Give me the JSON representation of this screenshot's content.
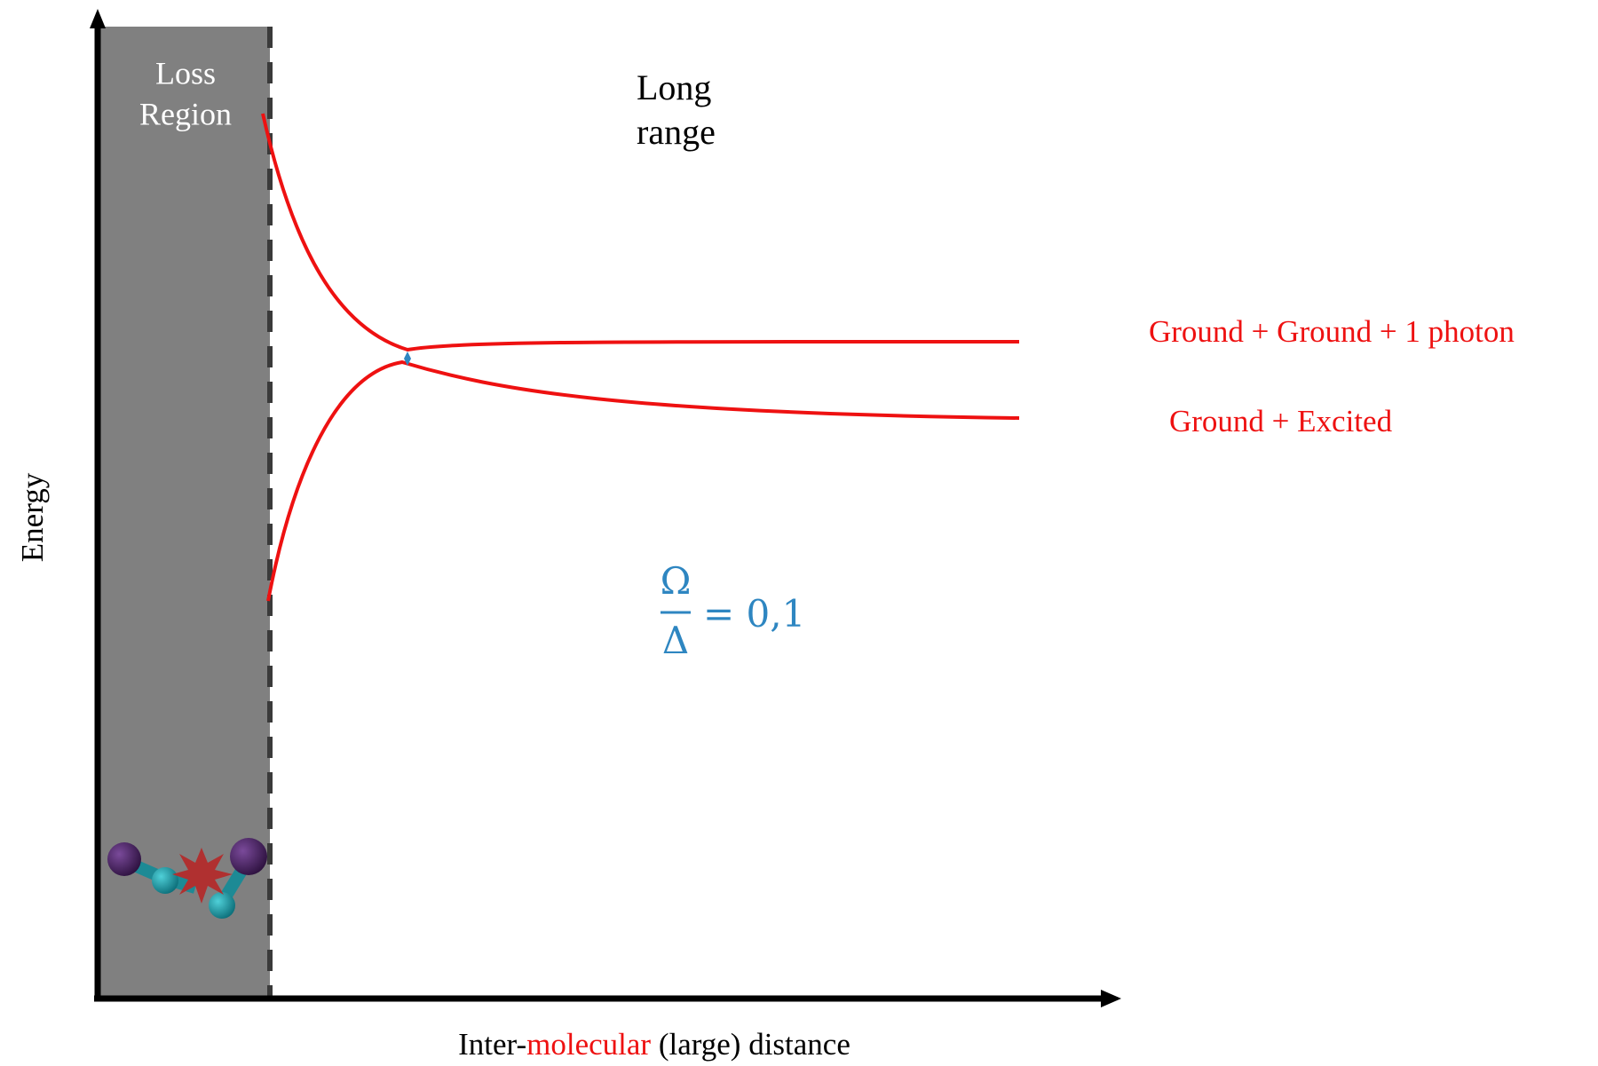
{
  "labels": {
    "loss_region": [
      "Loss",
      "Region"
    ],
    "long_range": [
      "Long",
      "range"
    ],
    "y_axis_label": "Energy",
    "x_axis_label": [
      "Inter-",
      "molecular",
      " (large) distance"
    ],
    "curve_labels": [
      "Ground + Ground + 1 photon",
      "Ground + Excited"
    ],
    "formula": {
      "numerator": "Ω",
      "denominator": "Δ",
      "rhs": "= 0,1"
    }
  }
}
